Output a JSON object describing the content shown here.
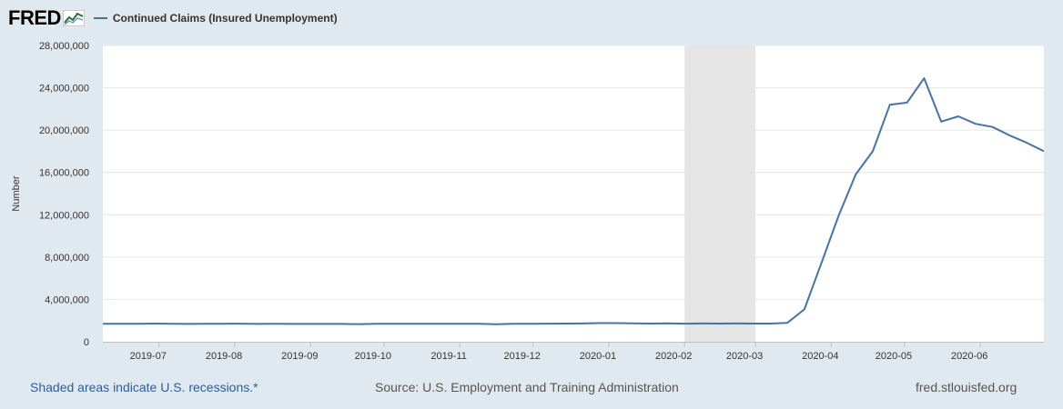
{
  "header": {
    "logo_text": "FRED",
    "legend_label": "Continued Claims (Insured Unemployment)",
    "series_color": "#4572a7"
  },
  "footer": {
    "recession_note": "Shaded areas indicate U.S. recessions.*",
    "source": "Source: U.S. Employment and Training Administration",
    "site": "fred.stlouisfed.org"
  },
  "chart_data": {
    "type": "line",
    "ylabel": "Number",
    "ylim": [
      0,
      28000000
    ],
    "yticks": [
      0,
      4000000,
      8000000,
      12000000,
      16000000,
      20000000,
      24000000,
      28000000
    ],
    "ytick_labels": [
      "0",
      "4,000,000",
      "8,000,000",
      "12,000,000",
      "16,000,000",
      "20,000,000",
      "24,000,000",
      "28,000,000"
    ],
    "xlim": [
      "2019-06-08",
      "2020-06-27"
    ],
    "xticks": [
      "2019-07-01",
      "2019-08-01",
      "2019-09-01",
      "2019-10-01",
      "2019-11-01",
      "2019-12-01",
      "2020-01-01",
      "2020-02-01",
      "2020-03-01",
      "2020-04-01",
      "2020-05-01",
      "2020-06-01"
    ],
    "xtick_labels": [
      "2019-07",
      "2019-08",
      "2019-09",
      "2019-10",
      "2019-11",
      "2019-12",
      "2020-01",
      "2020-02",
      "2020-03",
      "2020-04",
      "2020-05",
      "2020-06"
    ],
    "recession": {
      "start": "2020-02-01",
      "end": "2020-03-01"
    },
    "grid": true,
    "series": [
      {
        "color": "#4572a7",
        "x": [
          "2019-06-08",
          "2019-06-15",
          "2019-06-22",
          "2019-06-29",
          "2019-07-06",
          "2019-07-13",
          "2019-07-20",
          "2019-07-27",
          "2019-08-03",
          "2019-08-10",
          "2019-08-17",
          "2019-08-24",
          "2019-08-31",
          "2019-09-07",
          "2019-09-14",
          "2019-09-21",
          "2019-09-28",
          "2019-10-05",
          "2019-10-12",
          "2019-10-19",
          "2019-10-26",
          "2019-11-02",
          "2019-11-09",
          "2019-11-16",
          "2019-11-23",
          "2019-11-30",
          "2019-12-07",
          "2019-12-14",
          "2019-12-21",
          "2019-12-28",
          "2020-01-04",
          "2020-01-11",
          "2020-01-18",
          "2020-01-25",
          "2020-02-01",
          "2020-02-08",
          "2020-02-15",
          "2020-02-22",
          "2020-02-29",
          "2020-03-07",
          "2020-03-14",
          "2020-03-21",
          "2020-03-28",
          "2020-04-04",
          "2020-04-11",
          "2020-04-18",
          "2020-04-25",
          "2020-05-02",
          "2020-05-09",
          "2020-05-16",
          "2020-05-23",
          "2020-05-30",
          "2020-06-06",
          "2020-06-13",
          "2020-06-20",
          "2020-06-27"
        ],
        "values": [
          1690000,
          1700000,
          1700000,
          1720000,
          1700000,
          1680000,
          1700000,
          1700000,
          1710000,
          1680000,
          1700000,
          1680000,
          1680000,
          1680000,
          1680000,
          1670000,
          1700000,
          1690000,
          1700000,
          1700000,
          1700000,
          1700000,
          1700000,
          1660000,
          1700000,
          1700000,
          1710000,
          1720000,
          1730000,
          1760000,
          1760000,
          1740000,
          1720000,
          1740000,
          1710000,
          1730000,
          1720000,
          1730000,
          1720000,
          1720000,
          1780000,
          3060000,
          7450000,
          11900000,
          15800000,
          18000000,
          22400000,
          22600000,
          24900000,
          20800000,
          21300000,
          20600000,
          20300000,
          19500000,
          18800000,
          18000000
        ]
      }
    ]
  }
}
